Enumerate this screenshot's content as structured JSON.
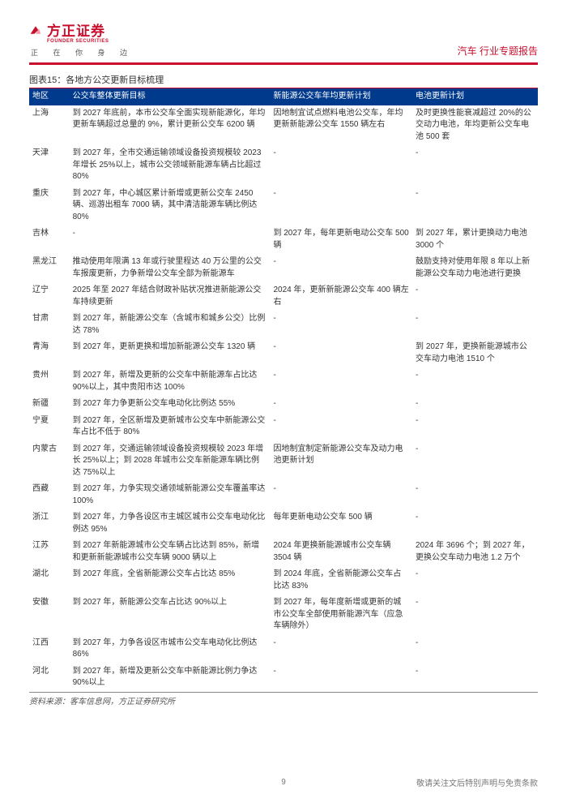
{
  "brand": {
    "cn": "方正证券",
    "en": "FOUNDER SECURITIES",
    "slogan": "正 在 你 身 边"
  },
  "doc_type": "汽车 行业专题报告",
  "table_title": "图表15：各地方公交更新目标梳理",
  "columns": [
    "地区",
    "公交车整体更新目标",
    "新能源公交车年均更新计划",
    "电池更新计划"
  ],
  "rows": [
    {
      "region": "上海",
      "target": "到 2027 年底前，本市公交车全面实现新能源化，年均更新车辆超过总量的 9%，累计更新公交车 6200 辆",
      "plan1": "因地制宜试点燃料电池公交车，年均更新新能源公交车 1550 辆左右",
      "plan2": "及时更换性能衰减超过 20%的公交动力电池，年均更新公交车电池 500 套"
    },
    {
      "region": "天津",
      "target": "到 2027 年，全市交通运输领域设备投资规模较 2023 年增长 25%以上，城市公交领域新能源车辆占比超过 80%",
      "plan1": "-",
      "plan2": "-"
    },
    {
      "region": "重庆",
      "target": "到 2027 年，中心城区累计新增或更新公交车 2450 辆、巡游出租车 7000 辆，其中清洁能源车辆比例达 80%",
      "plan1": "-",
      "plan2": "-"
    },
    {
      "region": "吉林",
      "target": "-",
      "plan1": "到 2027 年，每年更新电动公交车 500 辆",
      "plan2": "到 2027 年，累计更换动力电池 3000 个"
    },
    {
      "region": "黑龙江",
      "target": "推动使用年限满 13 年或行驶里程达 40 万公里的公交车报废更新，力争新增公交车全部为新能源车",
      "plan1": "-",
      "plan2": "鼓励支持对使用年限 8 年以上新能源公交车动力电池进行更换"
    },
    {
      "region": "辽宁",
      "target": "2025 年至 2027 年结合财政补贴状况推进新能源公交车持续更新",
      "plan1": "2024 年，更新新能源公交车 400 辆左右",
      "plan2": "-"
    },
    {
      "region": "甘肃",
      "target": "到 2027 年，新能源公交车（含城市和城乡公交）比例达 78%",
      "plan1": "-",
      "plan2": "-"
    },
    {
      "region": "青海",
      "target": "到 2027 年，更新更换和增加新能源公交车 1320 辆",
      "plan1": "-",
      "plan2": "到 2027 年，更换新能源城市公交车动力电池 1510 个"
    },
    {
      "region": "贵州",
      "target": "到 2027 年，新增及更新的公交车中新能源车占比达 90%以上，其中贵阳市达 100%",
      "plan1": "-",
      "plan2": "-"
    },
    {
      "region": "新疆",
      "target": "到 2027 年力争更新公交车电动化比例达 55%",
      "plan1": "-",
      "plan2": "-"
    },
    {
      "region": "宁夏",
      "target": "到 2027 年，全区新增及更新城市公交车中新能源公交车占比不低于 80%",
      "plan1": "-",
      "plan2": "-"
    },
    {
      "region": "内蒙古",
      "target": "到 2027 年，交通运输领域设备投资规模较 2023 年增长 25%以上；到 2028 年城市公交车新能源车辆比例达 75%以上",
      "plan1": "因地制宜制定新能源公交车及动力电池更新计划",
      "plan2": "-"
    },
    {
      "region": "西藏",
      "target": "到 2027 年，力争实现交通领域新能源公交车覆盖率达 100%",
      "plan1": "-",
      "plan2": "-"
    },
    {
      "region": "浙江",
      "target": "到 2027 年，力争各设区市主城区城市公交车电动化比例达 95%",
      "plan1": "每年更新电动公交车 500 辆",
      "plan2": "-"
    },
    {
      "region": "江苏",
      "target": "到 2027 年新能源城市公交车辆占比达到 85%，新增和更新新能源城市公交车辆 9000 辆以上",
      "plan1": "2024 年更换新能源城市公交车辆 3504 辆",
      "plan2": "2024 年 3696 个；到 2027 年，更换公交车动力电池 1.2 万个"
    },
    {
      "region": "湖北",
      "target": "到 2027 年底，全省新能源公交车占比达 85%",
      "plan1": "到 2024 年底，全省新能源公交车占比达 83%",
      "plan2": "-"
    },
    {
      "region": "安徽",
      "target": "到 2027 年，新能源公交车占比达 90%以上",
      "plan1": "到 2027 年，每年度新增或更新的城市公交车全部使用新能源汽车（应急车辆除外）",
      "plan2": "-"
    },
    {
      "region": "江西",
      "target": "到 2027 年，力争各设区市城市公交车电动化比例达 86%",
      "plan1": "-",
      "plan2": "-"
    },
    {
      "region": "河北",
      "target": "到 2027 年，新增及更新公交车中新能源比例力争达 90%以上",
      "plan1": "-",
      "plan2": "-"
    }
  ],
  "source": "资料来源：客车信息网，方正证券研究所",
  "page_number": "9",
  "disclaimer": "敬请关注文后特别声明与免责条款",
  "colors": {
    "brand_red": "#c8102e",
    "header_blue": "#003a8c",
    "text": "#333333",
    "footer_grey": "#777777"
  }
}
